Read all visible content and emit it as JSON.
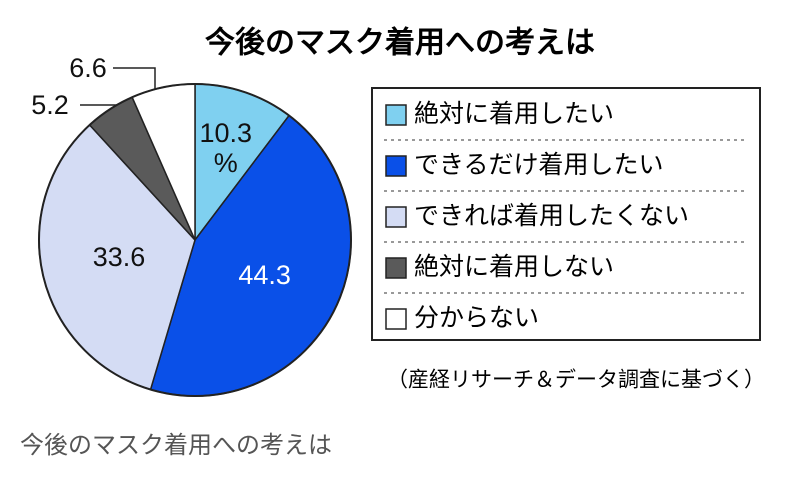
{
  "chart_data": {
    "type": "pie",
    "title": "今後のマスク着用への考えは",
    "categories": [
      "絶対に着用したい",
      "できるだけ着用したい",
      "できれば着用したくない",
      "絶対に着用しない",
      "分からない"
    ],
    "values": [
      10.3,
      44.3,
      33.6,
      5.2,
      6.6
    ],
    "value_labels": [
      "10.3\n%",
      "44.3",
      "33.6",
      "5.2",
      "6.6"
    ],
    "colors": [
      "#7fd0f0",
      "#0a50e8",
      "#d4dcf4",
      "#5a5a5a",
      "#ffffff"
    ],
    "source": "（産経リサーチ＆データ調査に基づく）"
  },
  "caption": "今後のマスク着用への考えは"
}
